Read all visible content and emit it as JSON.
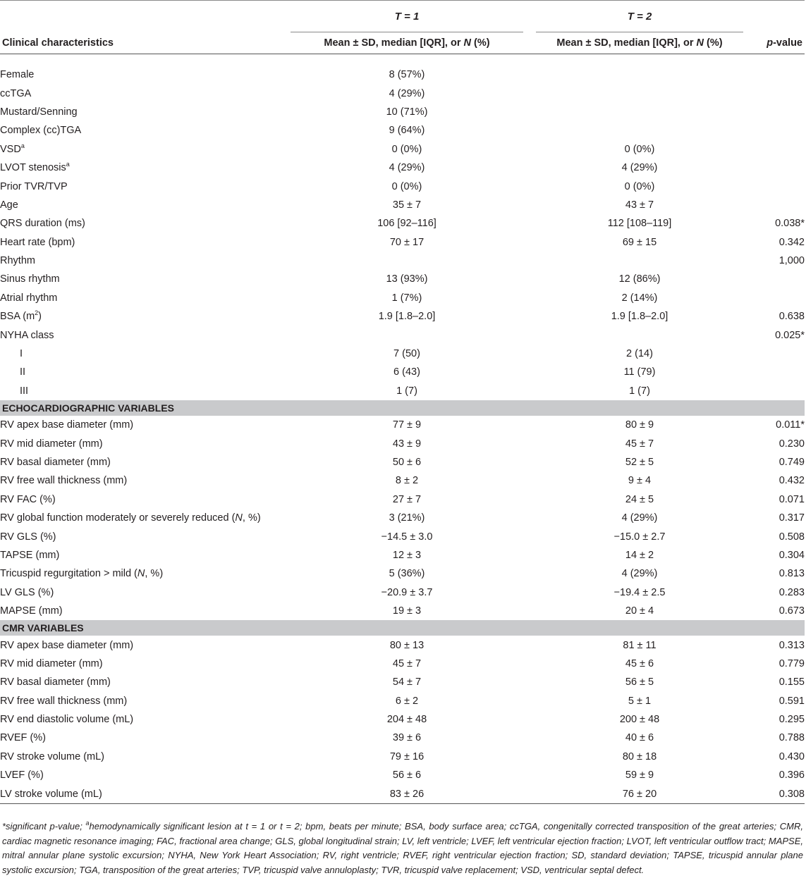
{
  "columns": {
    "t1_label": "T = 1",
    "t2_label": "T = 2",
    "characteristic": "Clinical characteristics",
    "t1_stat": "Mean ± SD, median [IQR], or N (%)",
    "t2_stat": "Mean ± SD, median [IQR], or N (%)",
    "pvalue": "p-value"
  },
  "rows": [
    {
      "label": "Female",
      "t1": "8 (57%)",
      "t2": "",
      "p": ""
    },
    {
      "label": "ccTGA",
      "t1": "4 (29%)",
      "t2": "",
      "p": ""
    },
    {
      "label": "Mustard/Senning",
      "t1": "10 (71%)",
      "t2": "",
      "p": ""
    },
    {
      "label": "Complex (cc)TGA",
      "t1": "9 (64%)",
      "t2": "",
      "p": ""
    },
    {
      "label": "VSD",
      "sup": "a",
      "t1": "0 (0%)",
      "t2": "0 (0%)",
      "p": ""
    },
    {
      "label": "LVOT stenosis",
      "sup": "a",
      "t1": "4 (29%)",
      "t2": "4 (29%)",
      "p": ""
    },
    {
      "label": "Prior TVR/TVP",
      "t1": "0 (0%)",
      "t2": "0 (0%)",
      "p": ""
    },
    {
      "label": "Age",
      "t1": "35 ± 7",
      "t2": "43 ± 7",
      "p": ""
    },
    {
      "label": "QRS duration (ms)",
      "t1": "106 [92–116]",
      "t2": "112 [108–119]",
      "p": "0.038*"
    },
    {
      "label": "Heart rate (bpm)",
      "t1": "70 ± 17",
      "t2": "69 ± 15",
      "p": "0.342"
    },
    {
      "label": "Rhythm",
      "t1": "",
      "t2": "",
      "p": "1,000"
    },
    {
      "label": "Sinus rhythm",
      "t1": "13 (93%)",
      "t2": "12 (86%)",
      "p": ""
    },
    {
      "label": "Atrial rhythm",
      "t1": "1 (7%)",
      "t2": "2 (14%)",
      "p": ""
    },
    {
      "label": "BSA (m",
      "sup": "2",
      "label_after": ")",
      "t1": "1.9 [1.8–2.0]",
      "t2": "1.9 [1.8–2.0]",
      "p": "0.638"
    },
    {
      "label": "NYHA class",
      "t1": "",
      "t2": "",
      "p": "0.025*"
    },
    {
      "label": "I",
      "indent": true,
      "t1": "7 (50)",
      "t2": "2 (14)",
      "p": ""
    },
    {
      "label": "II",
      "indent": true,
      "t1": "6 (43)",
      "t2": "11 (79)",
      "p": ""
    },
    {
      "label": "III",
      "indent": true,
      "t1": "1 (7)",
      "t2": "1 (7)",
      "p": ""
    },
    {
      "section": "ECHOCARDIOGRAPHIC VARIABLES"
    },
    {
      "label": "RV apex base diameter (mm)",
      "t1": "77 ± 9",
      "t2": "80 ± 9",
      "p": "0.011*"
    },
    {
      "label": "RV mid diameter (mm)",
      "t1": "43 ± 9",
      "t2": "45 ± 7",
      "p": "0.230"
    },
    {
      "label": "RV basal diameter (mm)",
      "t1": "50 ± 6",
      "t2": "52 ± 5",
      "p": "0.749"
    },
    {
      "label": "RV free wall thickness (mm)",
      "t1": "8 ± 2",
      "t2": "9 ± 4",
      "p": "0.432"
    },
    {
      "label": "RV FAC (%)",
      "t1": "27 ± 7",
      "t2": "24 ± 5",
      "p": "0.071"
    },
    {
      "label": "RV global function moderately or severely reduced (",
      "italic": "N",
      "label_after": ", %)",
      "t1": "3 (21%)",
      "t2": "4 (29%)",
      "p": "0.317"
    },
    {
      "label": "RV GLS (%)",
      "t1": "−14.5 ± 3.0",
      "t2": "−15.0 ± 2.7",
      "p": "0.508"
    },
    {
      "label": "TAPSE (mm)",
      "t1": "12 ± 3",
      "t2": "14 ± 2",
      "p": "0.304"
    },
    {
      "label": "Tricuspid regurgitation > mild (",
      "italic": "N",
      "label_after": ", %)",
      "t1": "5 (36%)",
      "t2": "4 (29%)",
      "p": "0.813"
    },
    {
      "label": "LV GLS (%)",
      "t1": "−20.9 ± 3.7",
      "t2": "−19.4 ± 2.5",
      "p": "0.283"
    },
    {
      "label": "MAPSE (mm)",
      "t1": "19 ± 3",
      "t2": "20 ± 4",
      "p": "0.673"
    },
    {
      "section": "CMR VARIABLES"
    },
    {
      "label": "RV apex base diameter (mm)",
      "t1": "80 ± 13",
      "t2": "81 ± 11",
      "p": "0.313"
    },
    {
      "label": "RV mid diameter (mm)",
      "t1": "45 ± 7",
      "t2": "45 ± 6",
      "p": "0.779"
    },
    {
      "label": "RV basal diameter (mm)",
      "t1": "54 ± 7",
      "t2": "56 ± 5",
      "p": "0.155"
    },
    {
      "label": "RV free wall thickness (mm)",
      "t1": "6 ± 2",
      "t2": "5 ± 1",
      "p": "0.591"
    },
    {
      "label": "RV end diastolic volume (mL)",
      "t1": "204 ± 48",
      "t2": "200 ± 48",
      "p": "0.295"
    },
    {
      "label": "RVEF (%)",
      "t1": "39 ± 6",
      "t2": "40 ± 6",
      "p": "0.788"
    },
    {
      "label": "RV stroke volume (mL)",
      "t1": "79 ± 16",
      "t2": "80 ± 18",
      "p": "0.430"
    },
    {
      "label": "LVEF (%)",
      "t1": "56 ± 6",
      "t2": "59 ± 9",
      "p": "0.396"
    },
    {
      "label": "LV stroke volume (mL)",
      "t1": "83 ± 26",
      "t2": "76 ± 20",
      "p": "0.308"
    }
  ],
  "footnote": {
    "part1": "*significant p-value; ",
    "sup": "a",
    "part2": "hemodynamically significant lesion at t = 1 or t = 2; bpm, beats per minute; BSA, body surface area; ccTGA, congenitally corrected transposition of the great arteries; CMR, cardiac magnetic resonance imaging; FAC, fractional area change; GLS, global longitudinal strain; LV, left ventricle; LVEF, left ventricular ejection fraction; LVOT, left ventricular outflow tract; MAPSE, mitral annular plane systolic excursion; NYHA, New York Heart Association; RV, right ventricle; RVEF, right ventricular ejection fraction; SD, standard deviation; TAPSE, tricuspid annular plane systolic excursion; TGA, transposition of the great arteries; TVP, tricuspid valve annuloplasty; TVR, tricuspid valve replacement; VSD, ventricular septal defect."
  }
}
